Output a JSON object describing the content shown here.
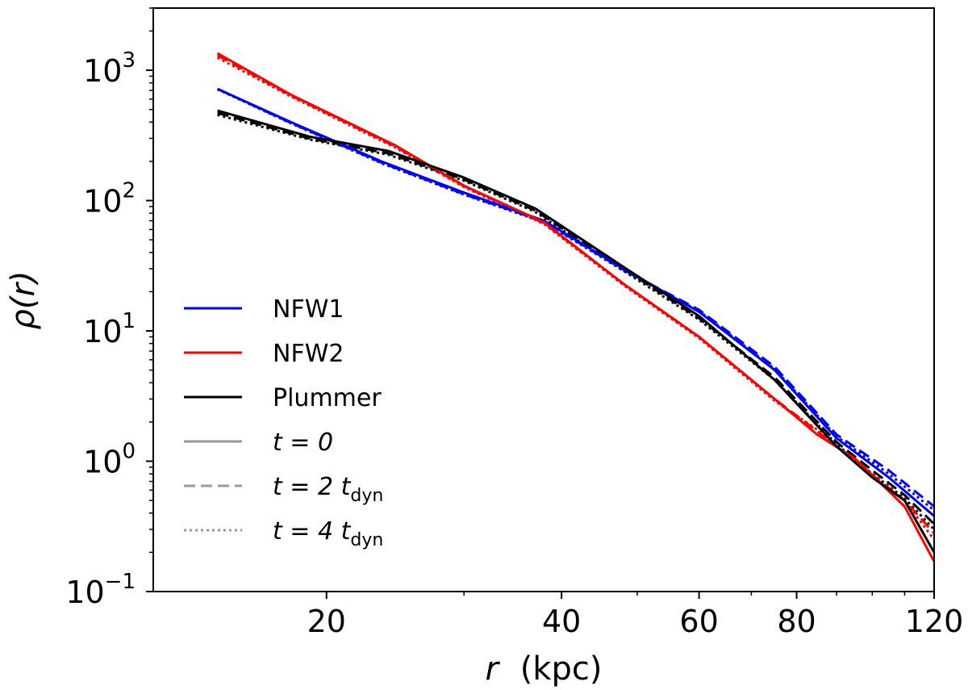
{
  "chart_data": {
    "type": "line",
    "xscale": "log",
    "yscale": "log",
    "xlim": [
      12,
      120
    ],
    "ylim": [
      0.1,
      3000
    ],
    "xlabel": {
      "var": "r",
      "unit": "(kpc)"
    },
    "ylabel": {
      "text": "ρ(r)"
    },
    "xticks": [
      {
        "value": 20,
        "label": "20"
      },
      {
        "value": 40,
        "label": "40"
      },
      {
        "value": 60,
        "label": "60"
      },
      {
        "value": 80,
        "label": "80"
      },
      {
        "value": 120,
        "label": "120"
      }
    ],
    "yticks": [
      {
        "value": 0.1,
        "base": "10",
        "exp": "−1"
      },
      {
        "value": 1,
        "base": "10",
        "exp": "0"
      },
      {
        "value": 10,
        "base": "10",
        "exp": "1"
      },
      {
        "value": 100,
        "base": "10",
        "exp": "2"
      },
      {
        "value": 1000,
        "base": "10",
        "exp": "3"
      }
    ],
    "models": [
      {
        "name": "NFW1",
        "color": "#0000ff"
      },
      {
        "name": "NFW2",
        "color": "#ff0000"
      },
      {
        "name": "Plummer",
        "color": "#000000"
      }
    ],
    "times": [
      {
        "key": "t0",
        "dash": "solid",
        "label": {
          "pre": "t = 0",
          "sub": ""
        }
      },
      {
        "key": "t2",
        "dash": "dashed",
        "label": {
          "pre": "t = 2 t",
          "sub": "dyn"
        }
      },
      {
        "key": "t4",
        "dash": "dotted",
        "label": {
          "pre": "t = 4 t",
          "sub": "dyn"
        }
      }
    ],
    "legend_time_color": "#999999",
    "legend_placement": "lower-left",
    "series": [
      {
        "model": "NFW1",
        "time": "t0",
        "x": [
          14.5,
          18,
          23.5,
          30,
          38,
          48,
          60,
          75,
          90,
          105,
          120
        ],
        "y": [
          720,
          400,
          200,
          115,
          70,
          30,
          14,
          5,
          1.5,
          0.75,
          0.38
        ]
      },
      {
        "model": "NFW1",
        "time": "t2",
        "x": [
          14.5,
          18,
          23.5,
          30,
          38,
          48,
          60,
          75,
          90,
          105,
          120
        ],
        "y": [
          720,
          395,
          196,
          112,
          69,
          29.5,
          14.5,
          5.3,
          1.6,
          0.85,
          0.45
        ]
      },
      {
        "model": "NFW1",
        "time": "t4",
        "x": [
          14.5,
          18,
          23.5,
          30,
          38,
          48,
          60,
          75,
          90,
          105,
          120
        ],
        "y": [
          715,
          392,
          194,
          111,
          68,
          29,
          14.2,
          5.1,
          1.55,
          0.8,
          0.42
        ]
      },
      {
        "model": "NFW2",
        "time": "t0",
        "x": [
          14.5,
          18,
          24.5,
          30,
          38,
          48,
          60,
          75,
          85,
          95,
          110,
          120
        ],
        "y": [
          1350,
          650,
          265,
          130,
          68,
          23,
          9,
          3,
          1.6,
          1.05,
          0.45,
          0.17
        ]
      },
      {
        "model": "NFW2",
        "time": "t2",
        "x": [
          14.5,
          18,
          24.5,
          30,
          38,
          48,
          60,
          75,
          85,
          95,
          110,
          120
        ],
        "y": [
          1300,
          640,
          260,
          129,
          67,
          23,
          9,
          3,
          1.7,
          1.0,
          0.5,
          0.28
        ]
      },
      {
        "model": "NFW2",
        "time": "t4",
        "x": [
          14.5,
          18,
          24.5,
          30,
          38,
          48,
          60,
          75,
          85,
          95,
          110,
          120
        ],
        "y": [
          1250,
          630,
          255,
          127,
          66,
          22.5,
          8.8,
          2.9,
          1.75,
          1.0,
          0.5,
          0.25
        ]
      },
      {
        "model": "Plummer",
        "time": "t0",
        "x": [
          14.5,
          19,
          24,
          30,
          37,
          48,
          60,
          75,
          90,
          100,
          110,
          120
        ],
        "y": [
          490,
          310,
          240,
          150,
          87,
          31,
          13,
          4.2,
          1.3,
          0.75,
          0.5,
          0.2
        ]
      },
      {
        "model": "Plummer",
        "time": "t2",
        "x": [
          14.5,
          19,
          24,
          30,
          37,
          48,
          60,
          75,
          90,
          100,
          110,
          120
        ],
        "y": [
          470,
          300,
          230,
          145,
          84,
          30,
          12.5,
          4.4,
          1.4,
          0.85,
          0.55,
          0.33
        ]
      },
      {
        "model": "Plummer",
        "time": "t4",
        "x": [
          14.5,
          19,
          24,
          30,
          37,
          48,
          60,
          75,
          90,
          100,
          110,
          120
        ],
        "y": [
          455,
          295,
          225,
          142,
          82,
          29,
          12.2,
          4.2,
          1.35,
          0.8,
          0.52,
          0.3
        ]
      }
    ]
  }
}
